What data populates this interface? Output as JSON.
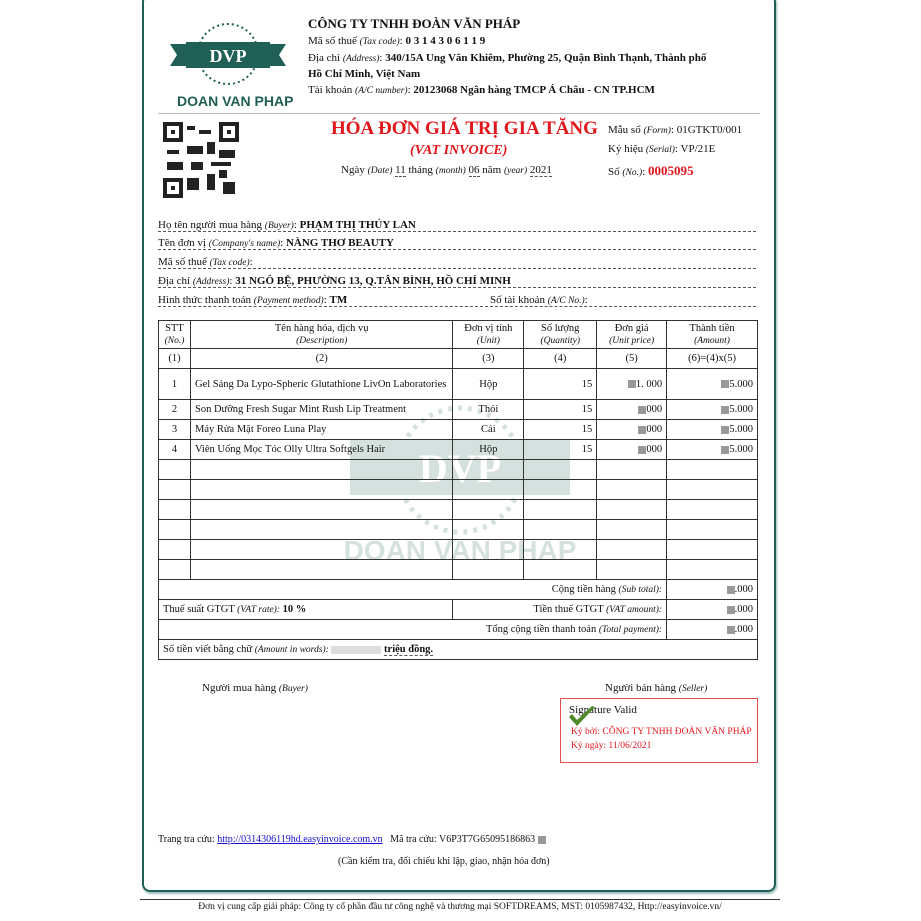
{
  "company": {
    "logo_initials": "DVP",
    "logo_name": "DOAN VAN PHAP",
    "name": "CÔNG TY TNHH ĐOÀN VĂN PHÁP",
    "tax_label": "Mã số thuế",
    "tax_label_en": "(Tax code)",
    "tax_code": "0 3 1 4 3 0 6 1 1 9",
    "address_label": "Địa chỉ",
    "address_label_en": "(Address)",
    "address_line1": "340/15A Ung Văn Khiêm, Phường 25, Quận Bình Thạnh, Thành phố",
    "address_line2": "Hồ Chí Minh, Việt Nam",
    "account_label": "Tài khoản",
    "account_label_en": "(A/C number)",
    "account": "20123068   Ngân hàng TMCP Á Châu - CN TP.HCM"
  },
  "invoice": {
    "title": "HÓA ĐƠN GIÁ TRỊ GIA TĂNG",
    "subtitle": "(VAT INVOICE)",
    "date_label": "Ngày",
    "date_label_en": "(Date)",
    "day": "11",
    "month_label": "tháng",
    "month_label_en": "(month)",
    "month": "06",
    "year_label": "năm",
    "year_label_en": "(year)",
    "year": "2021",
    "form_label": "Mẫu số",
    "form_label_en": "(Form)",
    "form": "01GTKT0/001",
    "serial_label": "Ký hiệu",
    "serial_label_en": "(Serial)",
    "serial": "VP/21E",
    "no_label": "Số",
    "no_label_en": "(No.)",
    "no": "0005095"
  },
  "buyer": {
    "name_label": "Họ tên người mua hàng",
    "name_label_en": "(Buyer)",
    "name": "PHẠM THỊ THÚY LAN",
    "company_label": "Tên đơn vị",
    "company_label_en": "(Company's name)",
    "company": "NÀNG THƠ BEAUTY",
    "tax_label": "Mã số thuế",
    "tax_label_en": "(Tax code)",
    "tax": "",
    "address_label": "Địa chỉ",
    "address_label_en": "(Address)",
    "address": "31 NGÔ BỆ, PHƯỜNG 13, Q.TÂN BÌNH, HỒ CHÍ MINH",
    "payment_label": "Hình thức thanh toán",
    "payment_label_en": "(Payment method)",
    "payment": "TM",
    "account_label": "Số tài khoản",
    "account_label_en": "(A/C No.)",
    "account": ""
  },
  "table": {
    "headers": [
      [
        "STT",
        "(No.)"
      ],
      [
        "Tên hàng hóa, dịch vụ",
        "(Description)"
      ],
      [
        "Đơn vị tính",
        "(Unit)"
      ],
      [
        "Số lượng",
        "(Quantity)"
      ],
      [
        "Đơn giá",
        "(Unit price)"
      ],
      [
        "Thành tiền",
        "(Amount)"
      ]
    ],
    "col_numbers": [
      "(1)",
      "(2)",
      "(3)",
      "(4)",
      "(5)",
      "(6)=(4)x(5)"
    ],
    "rows": [
      {
        "no": "1",
        "desc": "Gel Sáng Da Lypo-Spheric Glutathione LivOn Laboratories",
        "unit": "Hộp",
        "qty": "15",
        "price": "1.   000",
        "amount": "5.000"
      },
      {
        "no": "2",
        "desc": "Son Dưỡng Fresh Sugar Mint Rush Lip Treatment",
        "unit": "Thỏi",
        "qty": "15",
        "price": "000",
        "amount": "5.000"
      },
      {
        "no": "3",
        "desc": "Máy Rửa Mặt Foreo Luna Play",
        "unit": "Cái",
        "qty": "15",
        "price": "000",
        "amount": "5.000"
      },
      {
        "no": "4",
        "desc": "Viên Uống Mọc Tóc Olly Ultra Softgels Hair",
        "unit": "Hộp",
        "qty": "15",
        "price": "000",
        "amount": "5.000"
      }
    ],
    "subtotal_label": "Cộng tiền hàng",
    "subtotal_label_en": "(Sub total):",
    "subtotal": ".000",
    "vat_rate_label": "Thuế suất GTGT",
    "vat_rate_label_en": "(VAT rate):",
    "vat_rate": "10 %",
    "vat_amount_label": "Tiền thuế GTGT",
    "vat_amount_label_en": "(VAT amount):",
    "vat_amount": ".000",
    "total_label": "Tổng cộng tiền thanh toán",
    "total_label_en": "(Total payment):",
    "total": ".000",
    "words_label": "Số tiền viết bằng chữ",
    "words_label_en": "(Amount in words):",
    "words": "triệu đồng."
  },
  "signatures": {
    "buyer": "Người mua hàng",
    "buyer_en": "(Buyer)",
    "seller": "Người bán hàng",
    "seller_en": "(Seller)",
    "valid": "Signature Valid",
    "signed_by": "Ký bởi: CÔNG TY TNHH ĐOÀN VĂN PHÁP",
    "signed_date": "Ký ngày: 11/06/2021"
  },
  "lookup": {
    "label": "Trang tra cứu:",
    "url": "http://0314306119hd.easyinvoice.com.vn",
    "code_label": "Mã tra cứu:",
    "code": "V6P3T7G65095186863",
    "note": "(Cần kiểm tra, đối chiếu khi lập, giao, nhận hóa đơn)"
  },
  "footer": "Đơn vị cung cấp giải pháp: Công ty cổ phần đầu tư công nghệ và thương mại SOFTDREAMS, MST: 0105987432, Http://easyinvoice.vn/",
  "colors": {
    "brand": "#1f5f55",
    "accent_red": "#e0161b",
    "link": "#1a0dcc"
  }
}
